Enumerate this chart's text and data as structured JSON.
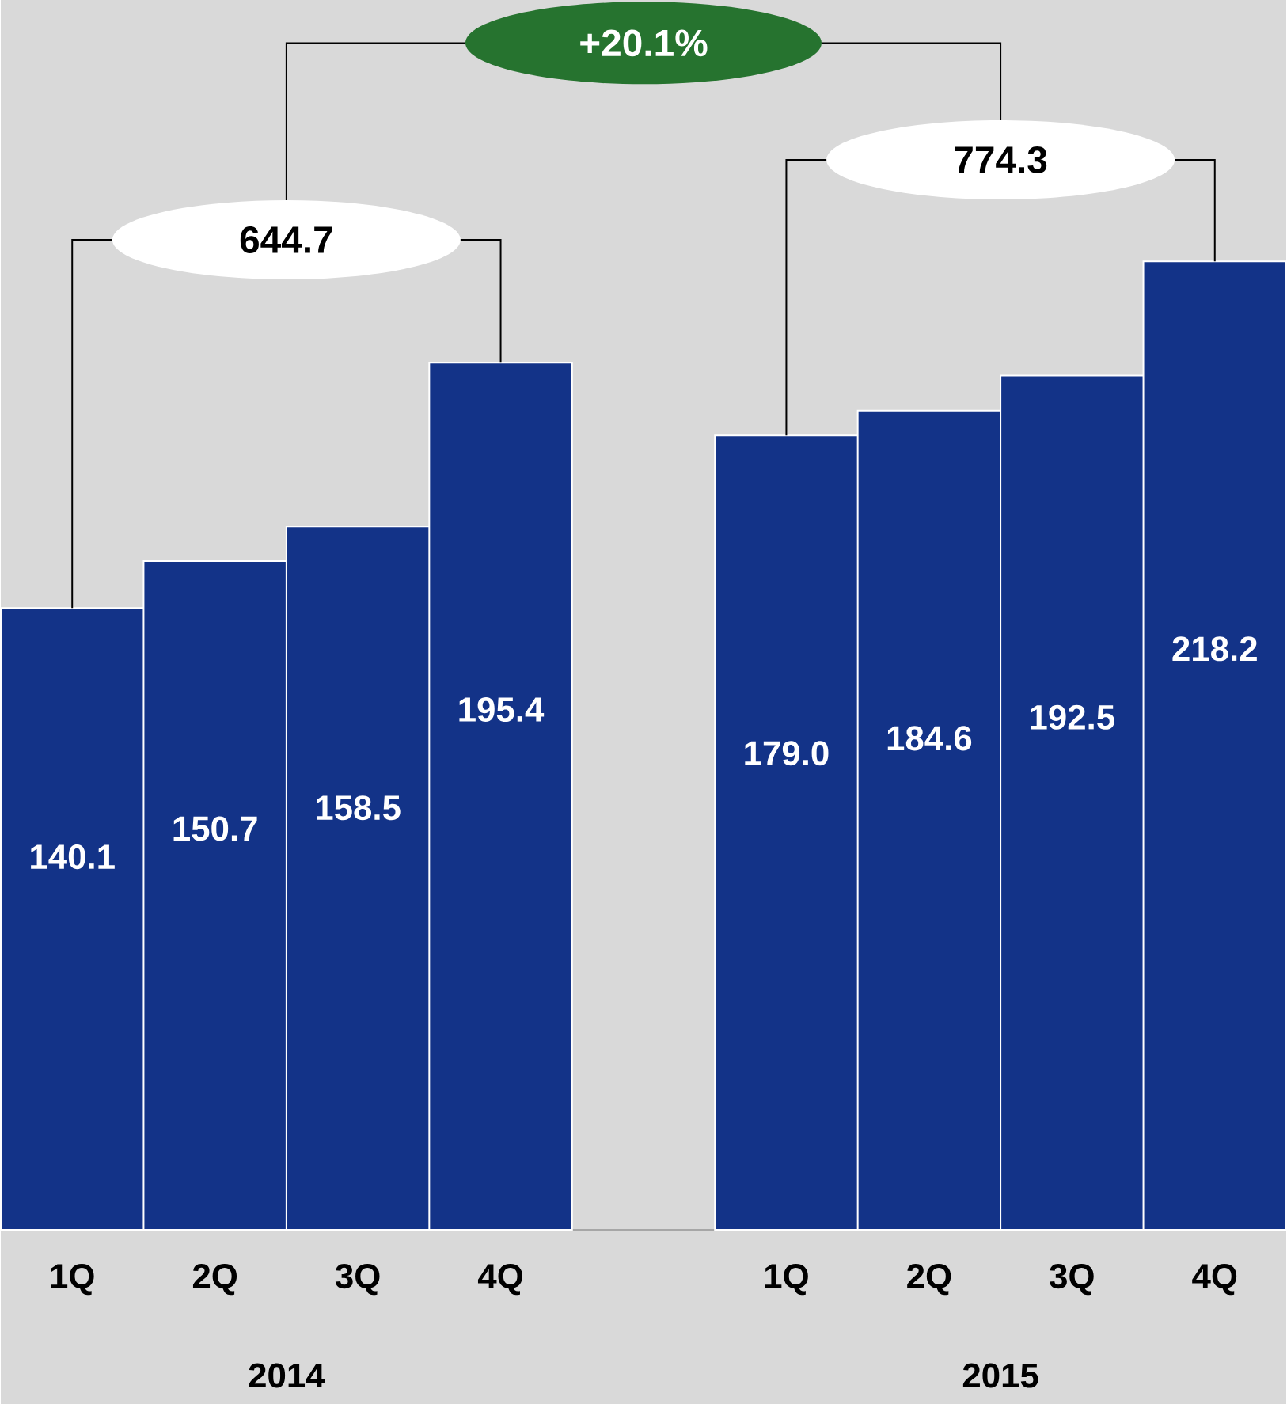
{
  "chart_data": {
    "type": "bar",
    "categories": [
      "1Q",
      "2Q",
      "3Q",
      "4Q",
      null,
      "1Q",
      "2Q",
      "3Q",
      "4Q"
    ],
    "values": [
      140.1,
      150.7,
      158.5,
      195.4,
      null,
      179.0,
      184.6,
      192.5,
      218.2
    ],
    "value_labels": [
      "140.1",
      "150.7",
      "158.5",
      "195.4",
      null,
      "179.0",
      "184.6",
      "192.5",
      "218.2"
    ],
    "color": "#133388",
    "annotations": [
      "644.7",
      "774.3",
      "+20.1%",
      "2014",
      "2015"
    ]
  }
}
